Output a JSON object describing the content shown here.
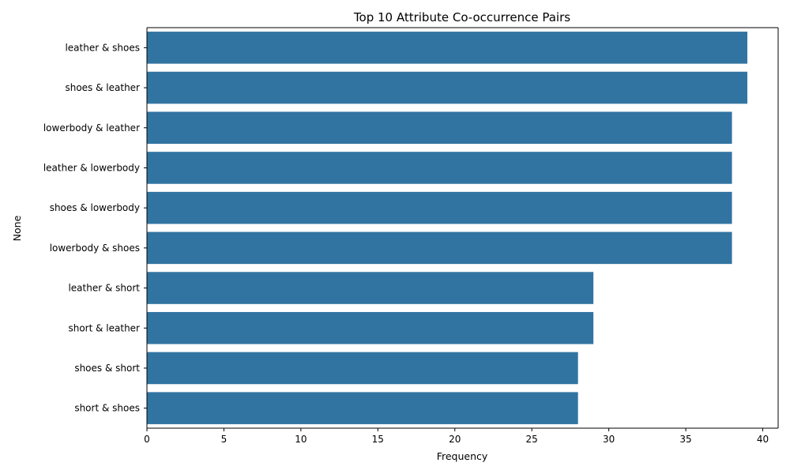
{
  "chart_data": {
    "type": "bar",
    "orientation": "horizontal",
    "title": "Top 10 Attribute Co-occurrence Pairs",
    "xlabel": "Frequency",
    "ylabel": "None",
    "categories": [
      "leather & shoes",
      "shoes & leather",
      "lowerbody & leather",
      "leather & lowerbody",
      "shoes & lowerbody",
      "lowerbody & shoes",
      "leather & short",
      "short & leather",
      "shoes & short",
      "short & shoes"
    ],
    "values": [
      39,
      39,
      38,
      38,
      38,
      38,
      29,
      29,
      28,
      28
    ],
    "xlim": [
      0,
      41
    ],
    "xticks": [
      0,
      5,
      10,
      15,
      20,
      25,
      30,
      35,
      40
    ],
    "grid": false,
    "legend": "none",
    "bar_color": "#3274a1"
  }
}
